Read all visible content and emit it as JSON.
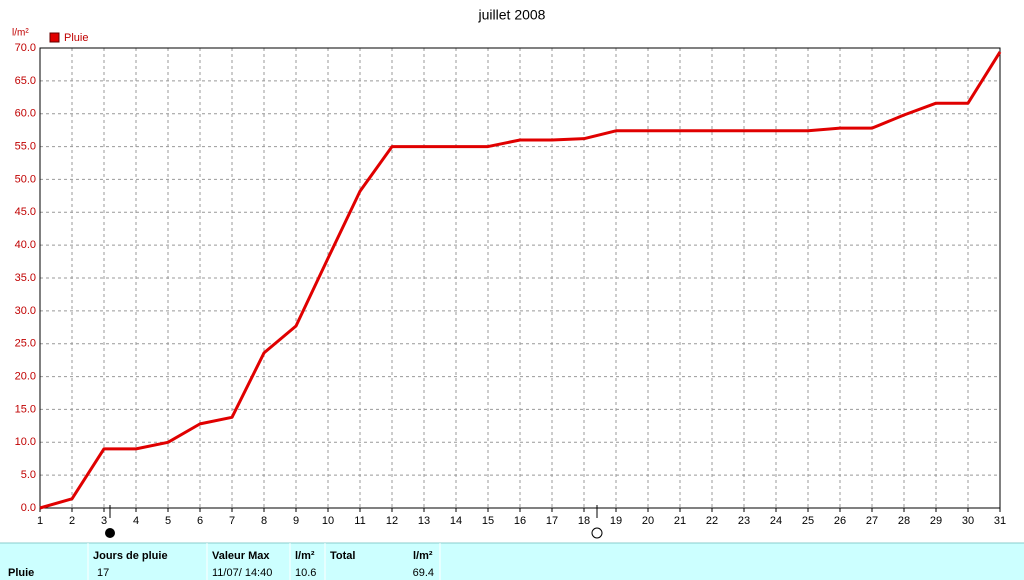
{
  "chart_data": {
    "type": "line",
    "title": "juillet 2008",
    "y_label": "l/m²",
    "x": [
      1,
      2,
      3,
      4,
      5,
      6,
      7,
      8,
      9,
      10,
      11,
      12,
      13,
      14,
      15,
      16,
      17,
      18,
      19,
      20,
      21,
      22,
      23,
      24,
      25,
      26,
      27,
      28,
      29,
      30,
      31
    ],
    "xlim": [
      1,
      31
    ],
    "xticks": [
      1,
      2,
      3,
      4,
      5,
      6,
      7,
      8,
      9,
      10,
      11,
      12,
      13,
      14,
      15,
      16,
      17,
      18,
      19,
      20,
      21,
      22,
      23,
      24,
      25,
      26,
      27,
      28,
      29,
      30,
      31
    ],
    "ylim": [
      0,
      70
    ],
    "yticks": [
      {
        "value": 0,
        "label": "0.0"
      },
      {
        "value": 5,
        "label": "5.0"
      },
      {
        "value": 10,
        "label": "10.0"
      },
      {
        "value": 15,
        "label": "15.0"
      },
      {
        "value": 20,
        "label": "20.0"
      },
      {
        "value": 25,
        "label": "25.0"
      },
      {
        "value": 30,
        "label": "30.0"
      },
      {
        "value": 35,
        "label": "35.0"
      },
      {
        "value": 40,
        "label": "40.0"
      },
      {
        "value": 45,
        "label": "45.0"
      },
      {
        "value": 50,
        "label": "50.0"
      },
      {
        "value": 55,
        "label": "55.0"
      },
      {
        "value": 60,
        "label": "60.0"
      },
      {
        "value": 65,
        "label": "65.0"
      },
      {
        "value": 70,
        "label": "70.0"
      }
    ],
    "grid": true,
    "legend": "top-left",
    "series": [
      {
        "name": "Pluie",
        "color": "#e00000",
        "values": [
          0,
          1.4,
          9.0,
          9.0,
          10.0,
          12.8,
          13.8,
          23.6,
          27.7,
          38.0,
          48.2,
          55.0,
          55.0,
          55.0,
          55.0,
          56.0,
          56.0,
          56.2,
          57.4,
          57.4,
          57.4,
          57.4,
          57.4,
          57.4,
          57.4,
          57.8,
          57.8,
          59.8,
          61.6,
          61.6,
          69.4
        ]
      }
    ]
  },
  "table": {
    "row_label": "Pluie",
    "headers": [
      "Jours de pluie",
      "Valeur Max",
      "l/m²",
      "Total",
      "l/m²"
    ],
    "values": [
      "17",
      "11/07/ 14:40",
      "10.6",
      "69.4"
    ]
  }
}
